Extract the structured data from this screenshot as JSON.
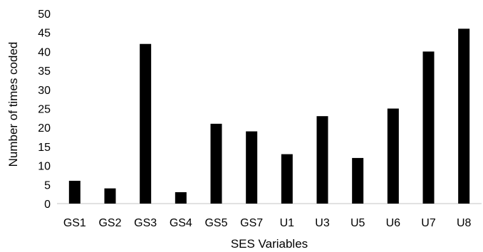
{
  "chart_data": {
    "type": "bar",
    "title": "",
    "xlabel": "SES Variables",
    "ylabel": "Number of times coded",
    "categories": [
      "GS1",
      "GS2",
      "GS3",
      "GS4",
      "GS5",
      "GS7",
      "U1",
      "U3",
      "U5",
      "U6",
      "U7",
      "U8"
    ],
    "values": [
      6,
      4,
      42,
      3,
      21,
      19,
      13,
      23,
      12,
      25,
      40,
      46
    ],
    "ylim": [
      0,
      50
    ],
    "yticks": [
      0,
      5,
      10,
      15,
      20,
      25,
      30,
      35,
      40,
      45,
      50
    ],
    "grid": false,
    "legend": "none",
    "bar_color": "#000000",
    "axis_color": "#d9d9d9"
  }
}
